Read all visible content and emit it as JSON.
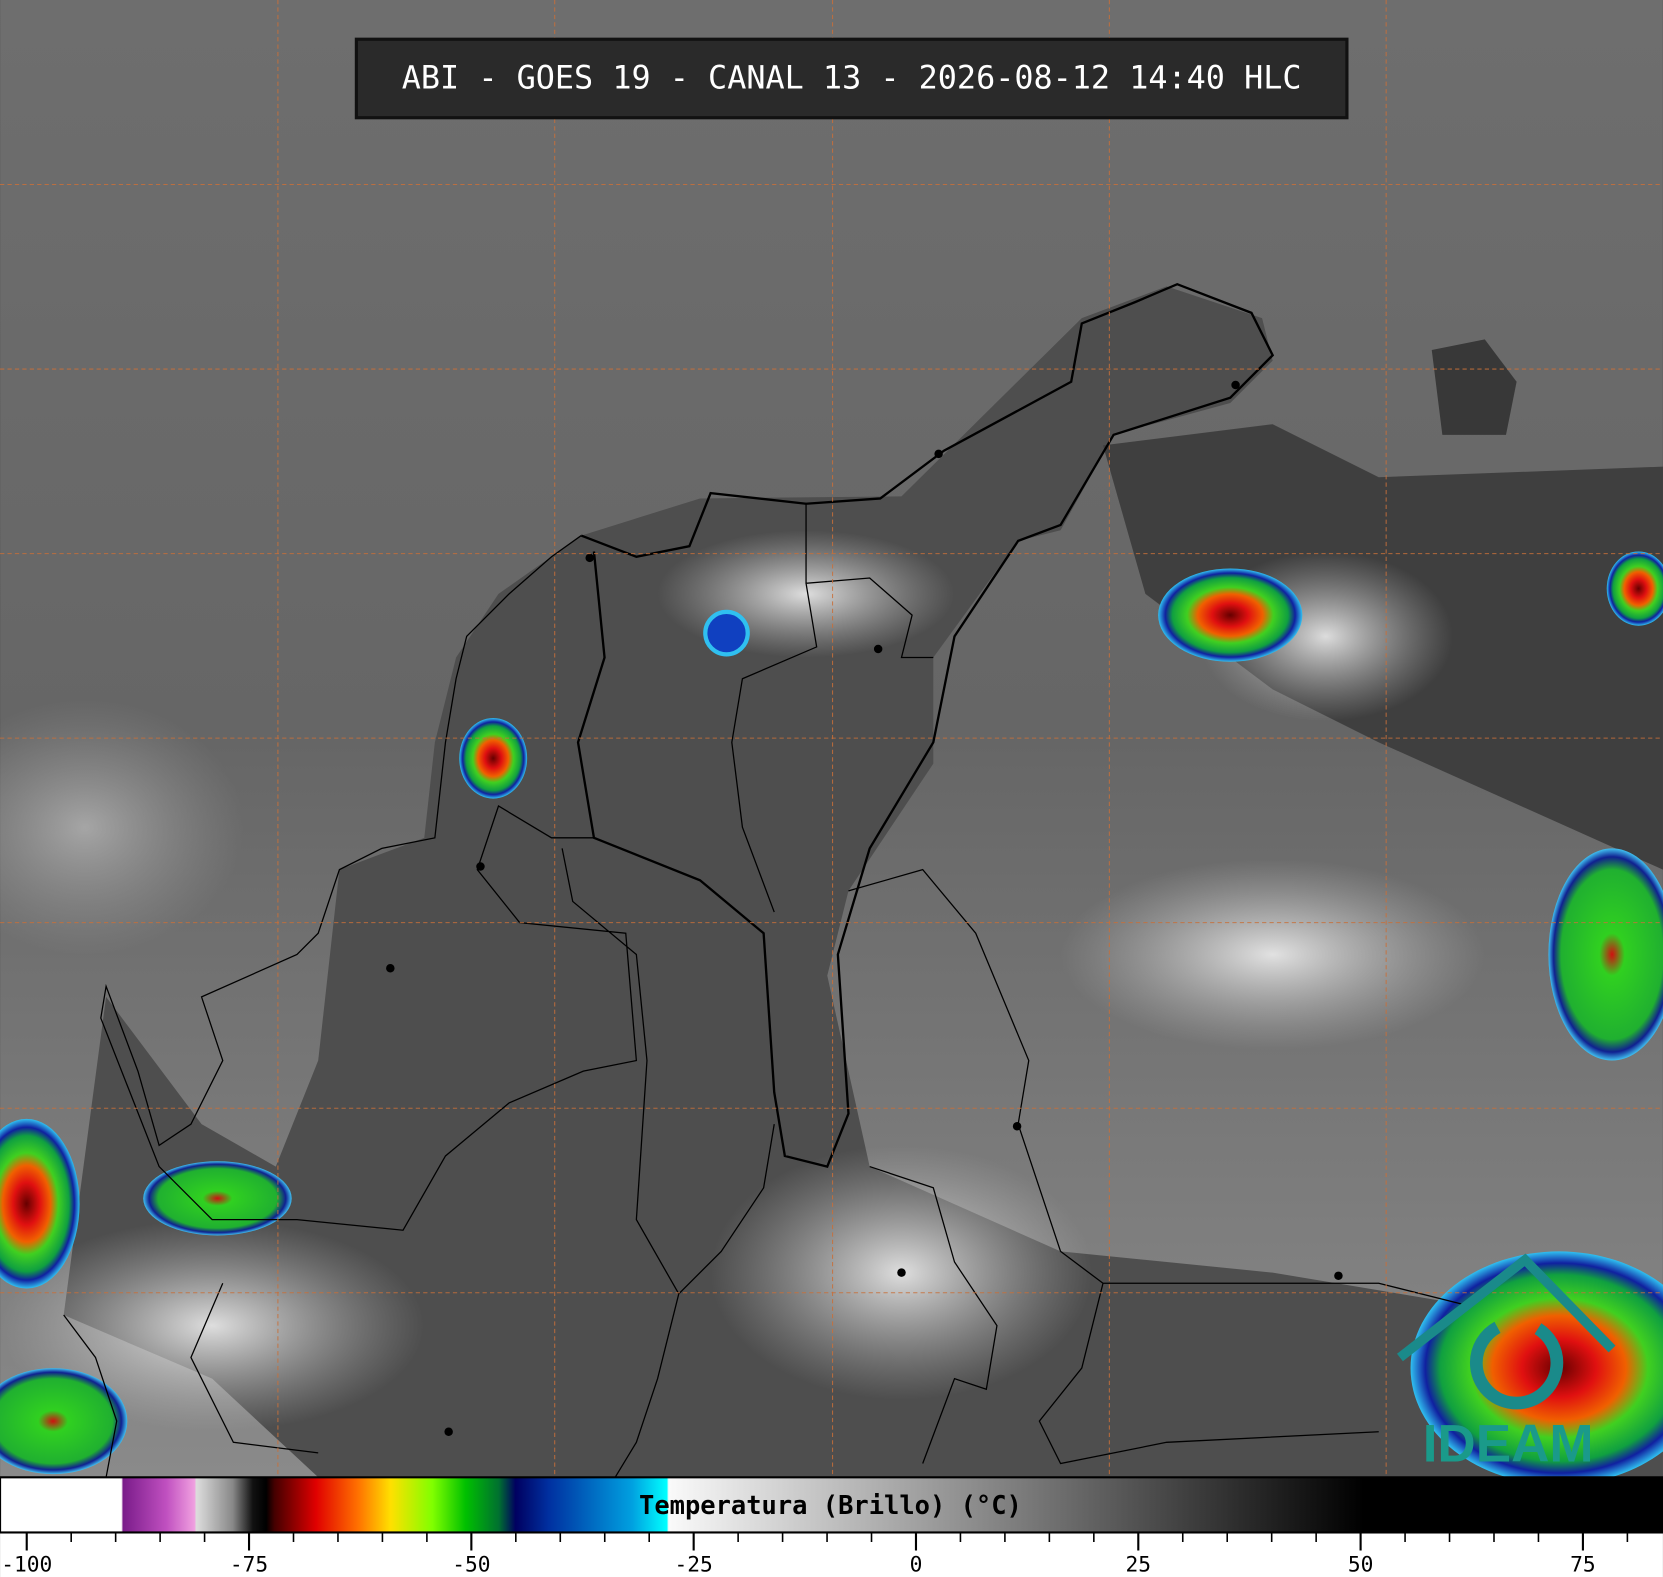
{
  "title": "ABI - GOES 19 - CANAL 13 - 2026-08-12 14:40 HLC",
  "colorbar": {
    "label": "Temperatura (Brillo) (°C)",
    "range": [
      -103,
      84
    ],
    "ticks": [
      -100,
      -75,
      -50,
      -25,
      0,
      25,
      50,
      75
    ],
    "minor_ticks": [
      -95,
      -90,
      -85,
      -80,
      -70,
      -65,
      -60,
      -55,
      -45,
      -40,
      -35,
      -30,
      -20,
      -15,
      -10,
      -5,
      5,
      10,
      15,
      20,
      30,
      35,
      40,
      45,
      55,
      60,
      65,
      70,
      80
    ]
  },
  "logo": "IDEAM"
}
